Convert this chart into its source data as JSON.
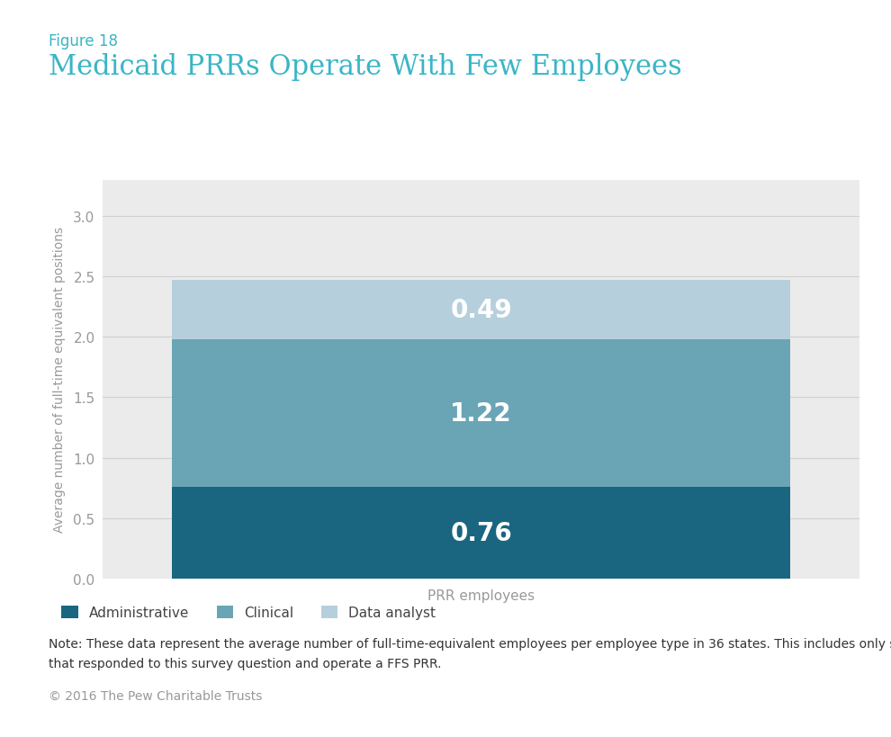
{
  "figure_label": "Figure 18",
  "title": "Medicaid PRRs Operate With Few Employees",
  "categories": [
    "PRR employees"
  ],
  "segments": [
    {
      "label": "Administrative",
      "value": 0.76,
      "color": "#1a6680",
      "text_value": "0.76"
    },
    {
      "label": "Clinical",
      "value": 1.22,
      "color": "#6aa5b5",
      "text_value": "1.22"
    },
    {
      "label": "Data analyst",
      "value": 0.49,
      "color": "#b5d0dc",
      "text_value": "0.49"
    }
  ],
  "ylabel": "Average number of full-time equivalent positions",
  "xlabel": "PRR employees",
  "ylim": [
    0,
    3.3
  ],
  "yticks": [
    0,
    0.5,
    1,
    1.5,
    2,
    2.5,
    3
  ],
  "chart_bg_color": "#ebebeb",
  "page_bg_color": "#ffffff",
  "title_color": "#3ab5c6",
  "figure_label_color": "#3ab5c6",
  "note_line1": "Note: These data represent the average number of full-time-equivalent employees per employee type in 36 states. This includes only states",
  "note_line2": "that responded to this survey question and operate a FFS PRR.",
  "copyright_text": "© 2016 The Pew Charitable Trusts",
  "value_label_color": "#ffffff",
  "value_label_fontsize": 20,
  "axis_tick_color": "#999999",
  "ylabel_color": "#999999",
  "xlabel_color": "#999999",
  "grid_color": "#d0d0d0",
  "legend_label_color": "#444444",
  "note_color": "#333333",
  "copyright_color": "#999999"
}
